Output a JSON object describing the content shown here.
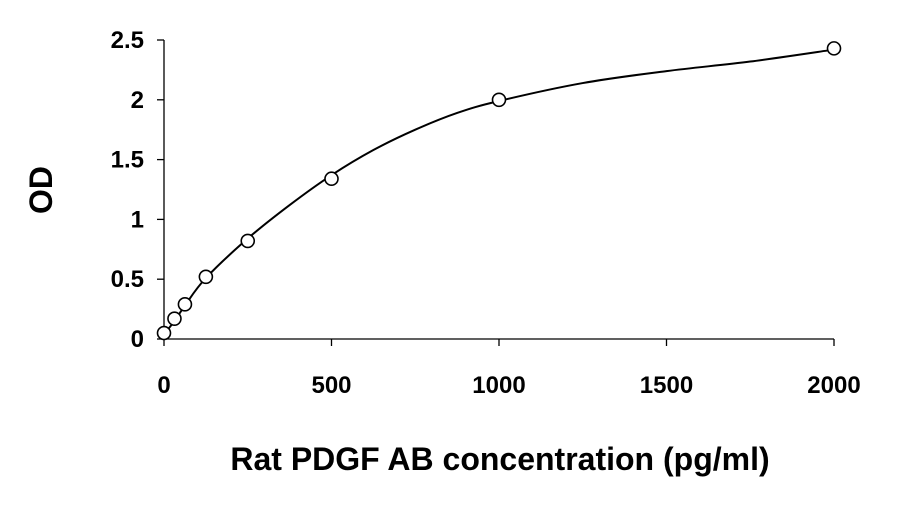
{
  "chart_data": {
    "type": "scatter",
    "title": "",
    "xlabel": "Rat PDGF AB concentration (pg/ml)",
    "ylabel": "OD",
    "xlim": [
      0,
      2000
    ],
    "ylim": [
      0,
      2.5
    ],
    "xticks": [
      "0",
      "500",
      "1000",
      "1500",
      "2000"
    ],
    "yticks": [
      "0",
      "0.5",
      "1",
      "1.5",
      "2",
      "2.5"
    ],
    "grid": false,
    "legend": "none",
    "series": [
      {
        "x": [
          0,
          31.25,
          62.5,
          125,
          250,
          500,
          1000,
          2000
        ],
        "y": [
          0.05,
          0.17,
          0.29,
          0.52,
          0.82,
          1.34,
          2.0,
          2.43
        ]
      }
    ],
    "trendline": {
      "x": [
        0,
        31.25,
        62.5,
        125,
        250,
        375,
        500,
        625,
        750,
        875,
        1000,
        1250,
        1500,
        1750,
        2000
      ],
      "y": [
        0.04,
        0.15,
        0.28,
        0.51,
        0.84,
        1.12,
        1.37,
        1.58,
        1.75,
        1.89,
        1.99,
        2.14,
        2.24,
        2.32,
        2.42
      ]
    },
    "colors": {
      "marker_stroke": "#000000",
      "marker_fill": "#ffffff",
      "line": "#000000",
      "axis": "#000000"
    }
  }
}
